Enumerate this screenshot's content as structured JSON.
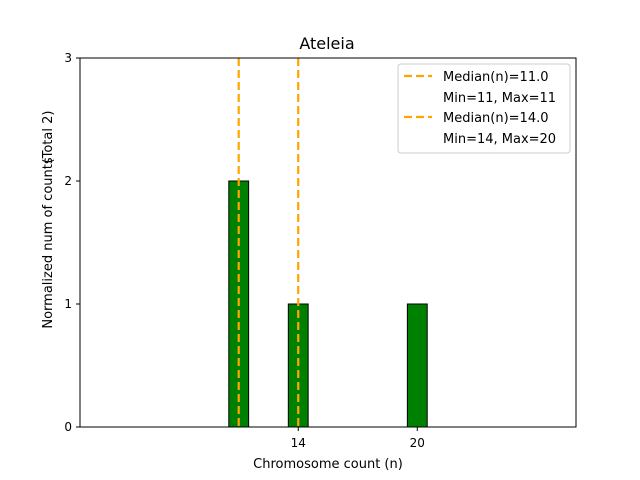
{
  "chart_data": {
    "type": "bar",
    "title": "Ateleia",
    "xlabel": "Chromosome count (n)",
    "ylabel": "Normalized num of counts",
    "ylabel_note": "(Total 2)",
    "xlim": [
      3,
      28
    ],
    "ylim": [
      0,
      3
    ],
    "xticks": [
      14,
      20
    ],
    "yticks": [
      0,
      1,
      2,
      3
    ],
    "bar_width": 1,
    "bars": [
      {
        "x": 11,
        "value": 2
      },
      {
        "x": 14,
        "value": 1
      },
      {
        "x": 20,
        "value": 1
      }
    ],
    "medians": [
      {
        "value": 11.0,
        "label": "Median(n)=11.0",
        "range_label": "Min=11, Max=11"
      },
      {
        "value": 14.0,
        "label": "Median(n)=14.0",
        "range_label": "Min=14, Max=20"
      }
    ],
    "grid": false,
    "legend_position": "top-right",
    "colors": {
      "bar": "#008000",
      "bar_edge": "#000000",
      "median": "#FFA500"
    }
  }
}
